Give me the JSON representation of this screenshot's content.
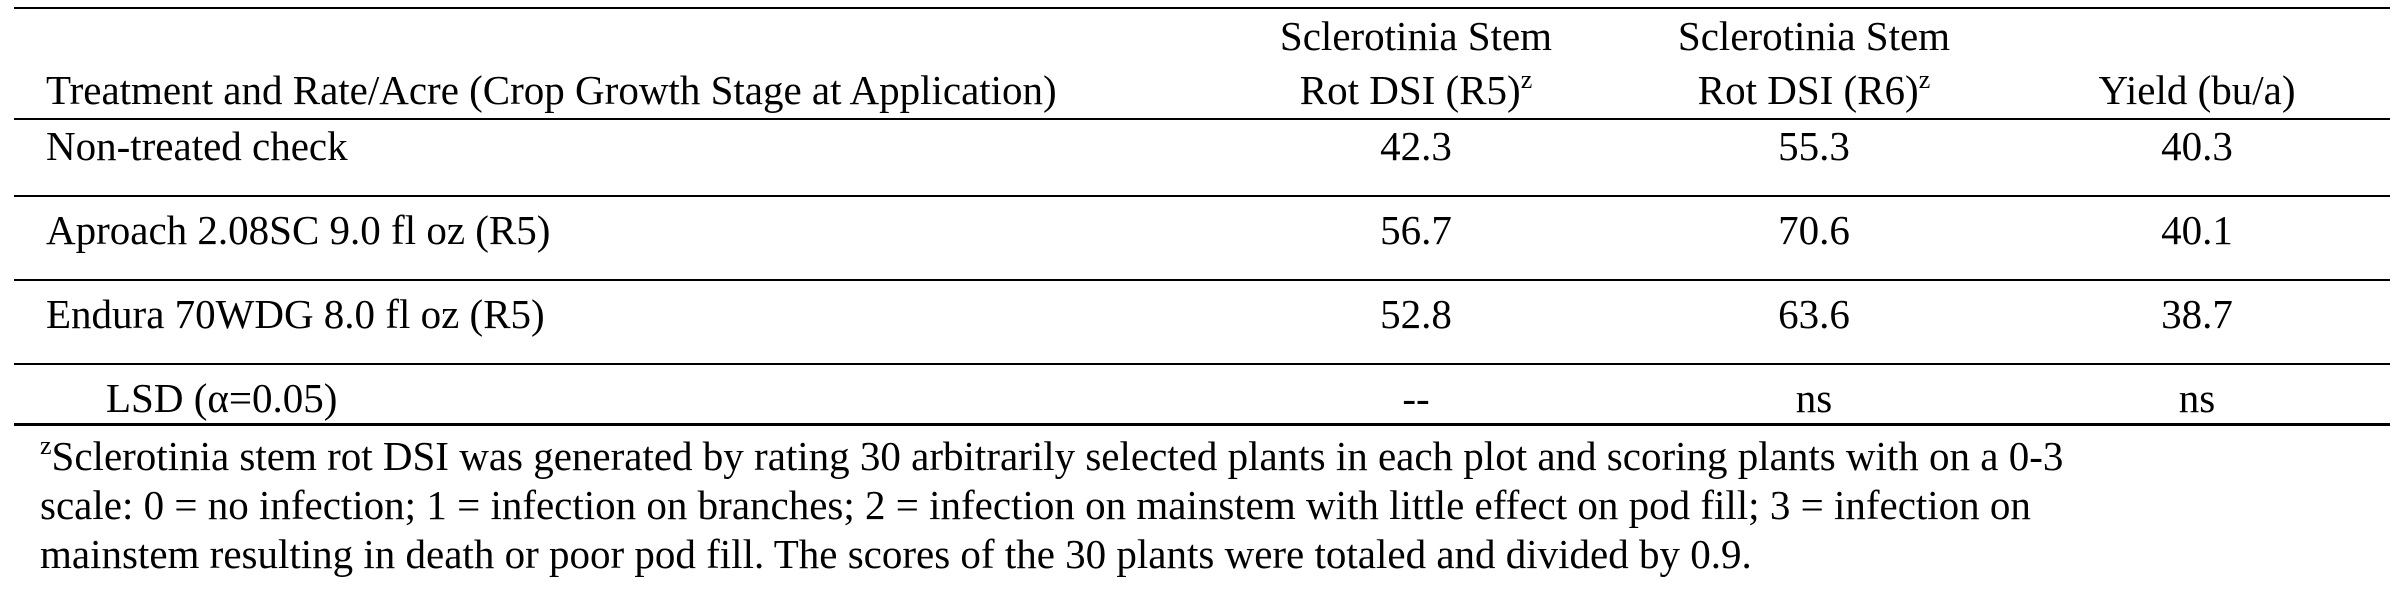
{
  "table": {
    "headers": [
      {
        "line2": "Treatment and Rate/Acre (Crop Growth Stage at Application)"
      },
      {
        "line1": "Sclerotinia Stem",
        "line2": "Rot DSI (R5)",
        "sup": "z"
      },
      {
        "line1": "Sclerotinia Stem",
        "line2": "Rot DSI (R6)",
        "sup": "z"
      },
      {
        "line2": "Yield (bu/a)"
      }
    ],
    "rows": [
      [
        "Non-treated check",
        "42.3",
        "55.3",
        "40.3"
      ],
      [
        "Aproach 2.08SC 9.0 fl oz (R5)",
        "56.7",
        "70.6",
        "40.1"
      ],
      [
        "Endura 70WDG 8.0 fl oz (R5)",
        "52.8",
        "63.6",
        "38.7"
      ],
      [
        "LSD (α=0.05)",
        "--",
        "ns",
        "ns"
      ]
    ]
  },
  "footnote": {
    "sup": "z",
    "lines": [
      "Sclerotinia stem rot DSI was generated by rating 30 arbitrarily selected plants in each plot and scoring plants with on a 0-3",
      "scale: 0 = no infection; 1 = infection on branches; 2 = infection on mainstem with little effect on pod fill; 3 = infection on",
      "mainstem resulting in death or poor pod fill.  The scores of the 30 plants were totaled and divided by 0.9."
    ]
  }
}
